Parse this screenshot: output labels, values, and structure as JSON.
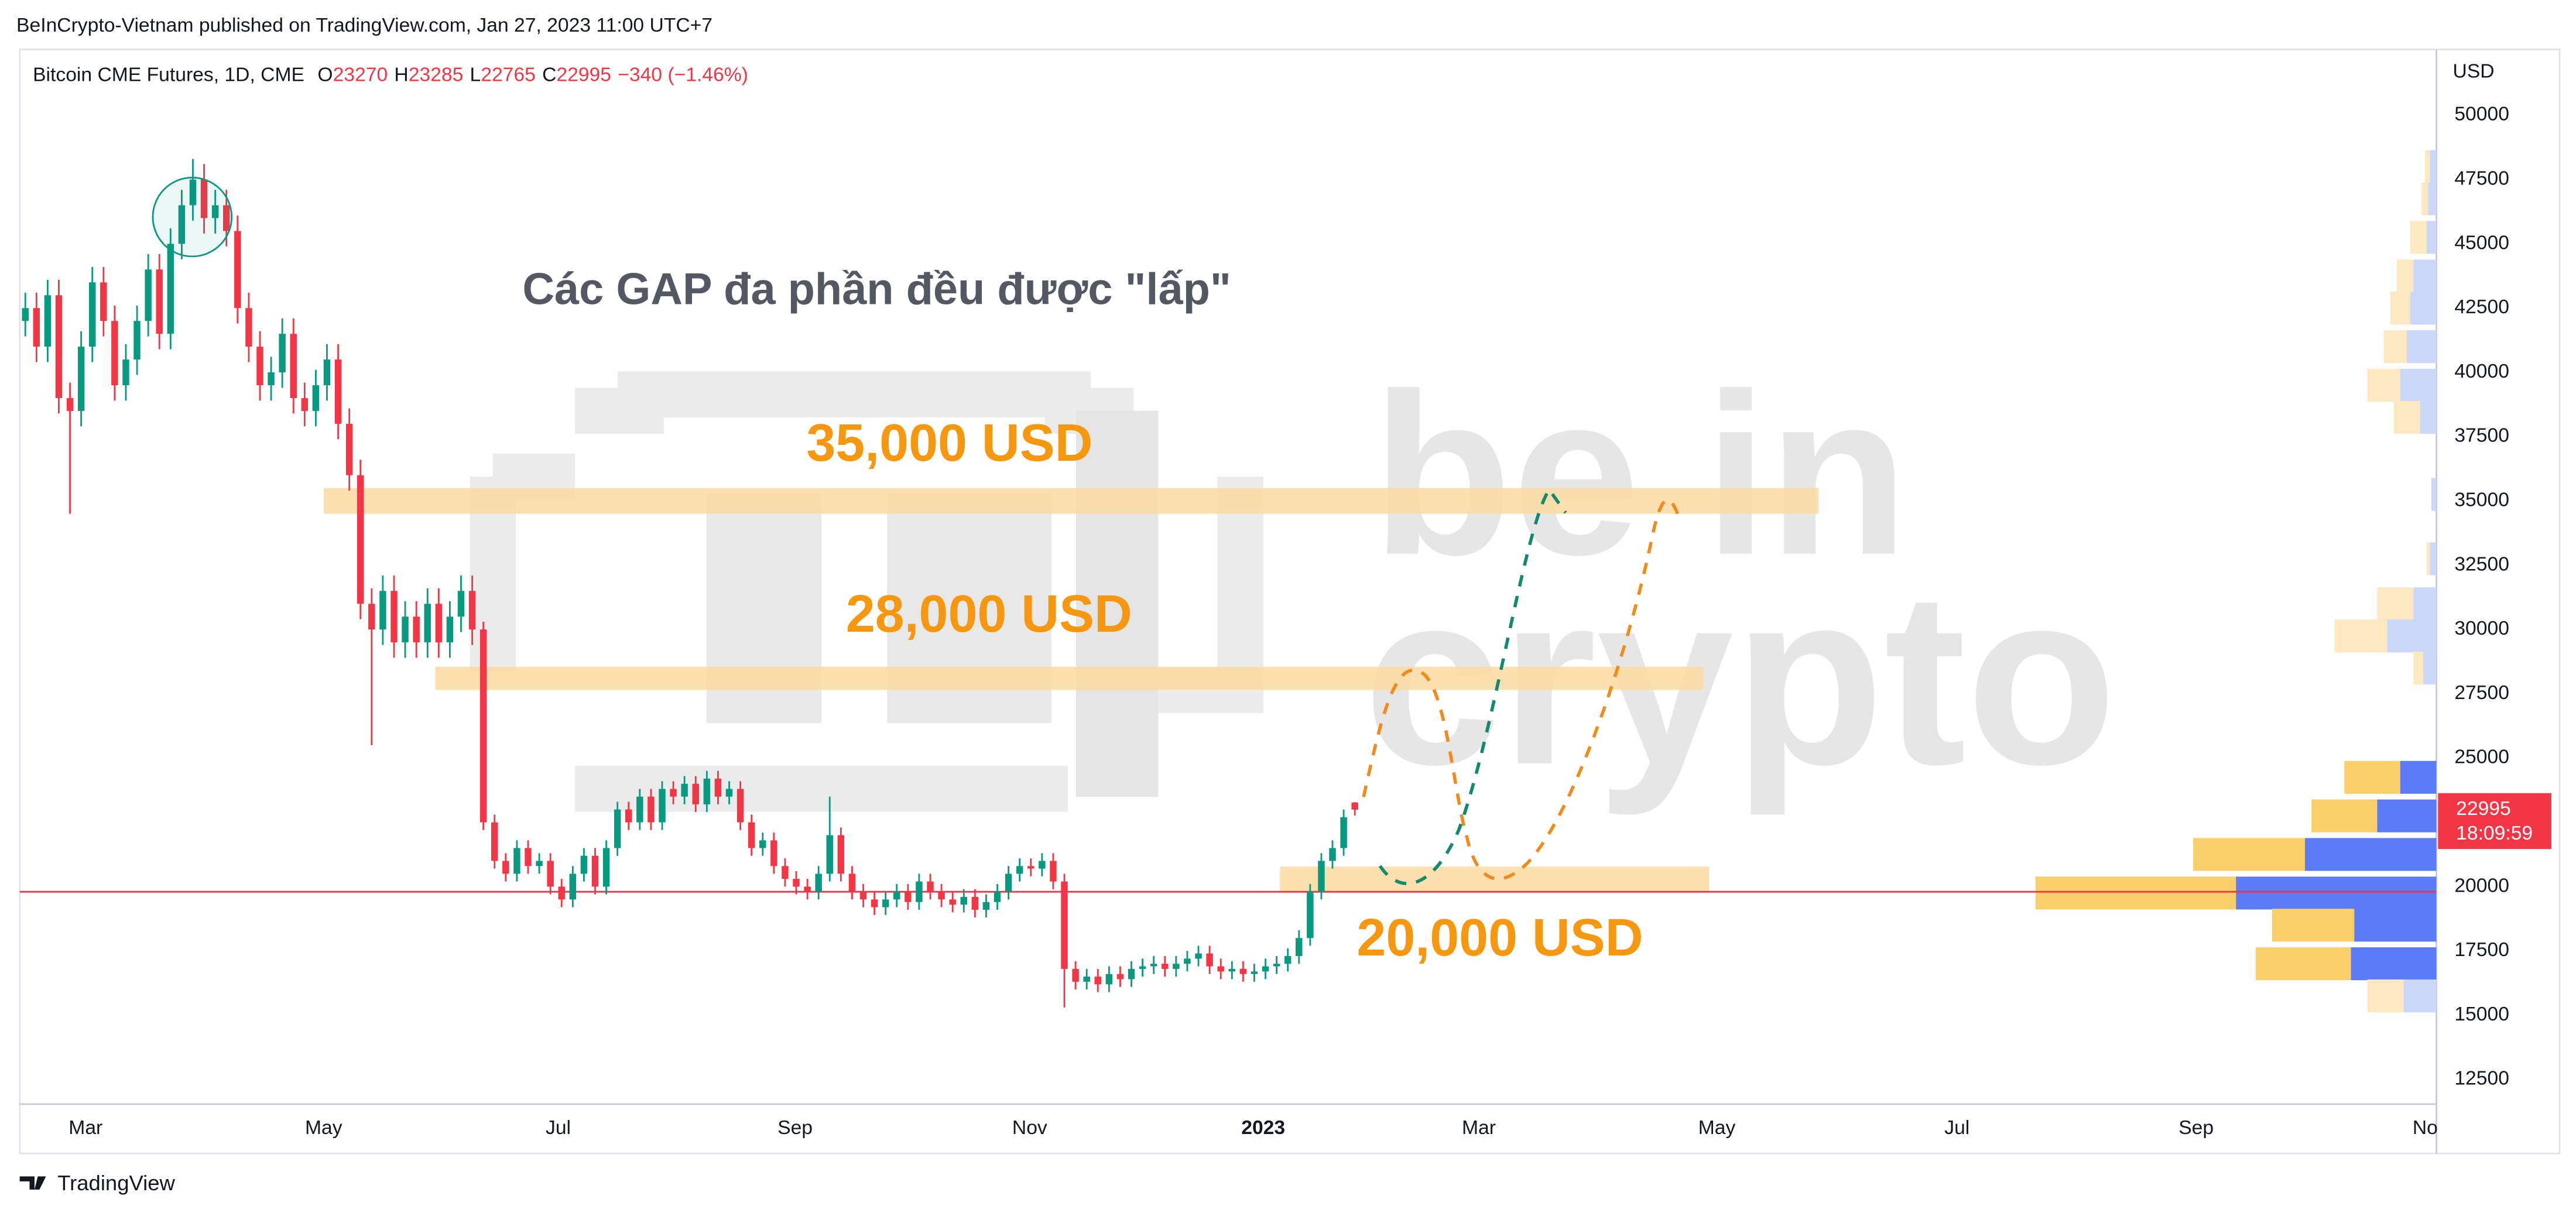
{
  "header": "BeInCrypto-Vietnam published on TradingView.com, Jan 27, 2023 11:00 UTC+7",
  "footer": "TradingView",
  "chart_data": {
    "type": "candlestick",
    "title": "Các GAP đa phần đều được \"lấp\"",
    "symbol": "Bitcoin CME Futures, 1D, CME",
    "ohlc_prefixes": [
      "O",
      "H",
      "L",
      "C"
    ],
    "change": "−340 (−1.46%)",
    "countdown": "18:09:59",
    "y_unit": "USD",
    "open": [
      42000,
      42500,
      41000,
      43000,
      39000,
      38500,
      41000,
      43500,
      42000,
      39500,
      40500,
      42000,
      44000,
      41500,
      45000,
      46500,
      47500,
      46000,
      46500,
      45500,
      42500,
      41000,
      39500,
      40000,
      41500,
      39000,
      38500,
      39500,
      40500,
      38000,
      36000,
      31000,
      30000,
      31500,
      29500,
      30500,
      29500,
      31000,
      29500,
      30500,
      31500,
      30000,
      22500,
      21000,
      20500,
      21500,
      20800,
      21000,
      20000,
      19500,
      20500,
      21200,
      20000,
      21500,
      23000,
      22500,
      23500,
      22500,
      23800,
      23500,
      24000,
      23200,
      24200,
      23500,
      23800,
      22500,
      21500,
      21800,
      20800,
      20300,
      20000,
      19800,
      20500,
      22000,
      20500,
      19800,
      19500,
      19200,
      19500,
      19800,
      19400,
      20200,
      19800,
      19500,
      19300,
      19600,
      19100,
      19400,
      19800,
      20500,
      20800,
      20700,
      21000,
      20200,
      16800,
      16300,
      16500,
      16200,
      16600,
      16400,
      16800,
      16900,
      17000,
      16800,
      17000,
      17200,
      17400,
      16900,
      16700,
      16800,
      16600,
      16700,
      16900,
      17000,
      17300,
      18000,
      19800,
      21000,
      21500,
      23270
    ],
    "high": [
      43100,
      43100,
      43600,
      43600,
      39600,
      41600,
      44100,
      44100,
      42600,
      41100,
      42600,
      44600,
      44600,
      45600,
      47100,
      48300,
      48100,
      47100,
      47100,
      46100,
      43100,
      41600,
      40600,
      42100,
      42100,
      39600,
      40100,
      41100,
      41100,
      38600,
      36600,
      31600,
      32100,
      32100,
      31100,
      31100,
      31600,
      31600,
      31100,
      32100,
      32100,
      30300,
      22800,
      21300,
      21800,
      21800,
      21300,
      21300,
      20300,
      20800,
      21500,
      21500,
      21800,
      23300,
      23300,
      23800,
      23800,
      24100,
      24100,
      24300,
      24300,
      24500,
      24500,
      24100,
      24100,
      22800,
      22100,
      22100,
      21100,
      20600,
      20300,
      20800,
      23500,
      22300,
      20800,
      20100,
      19800,
      19800,
      20100,
      20100,
      20500,
      20500,
      20100,
      19800,
      19900,
      19900,
      19700,
      20100,
      20800,
      21100,
      21100,
      21300,
      21300,
      20500,
      17100,
      16800,
      16800,
      16900,
      16900,
      17100,
      17200,
      17300,
      17300,
      17300,
      17500,
      17700,
      17700,
      17200,
      17100,
      17100,
      17000,
      17200,
      17300,
      17600,
      18300,
      20100,
      21300,
      21800,
      23000,
      23285
    ],
    "low": [
      41400,
      40400,
      40400,
      38400,
      34500,
      37900,
      40400,
      41400,
      38900,
      38900,
      39900,
      41400,
      40900,
      40900,
      44400,
      45900,
      45400,
      45400,
      44900,
      41900,
      40400,
      38900,
      38900,
      39400,
      38400,
      37900,
      37900,
      38900,
      37400,
      35400,
      30400,
      25500,
      29400,
      28900,
      28900,
      28900,
      28900,
      28900,
      28900,
      29900,
      29400,
      22200,
      20700,
      20200,
      20200,
      20500,
      20500,
      19700,
      19200,
      19200,
      20200,
      19700,
      19700,
      21200,
      22200,
      22200,
      22200,
      22200,
      23200,
      23200,
      22900,
      22900,
      23200,
      23200,
      22200,
      21200,
      21200,
      20500,
      20000,
      19700,
      19500,
      19500,
      20200,
      20200,
      19500,
      19200,
      18900,
      18900,
      19200,
      19100,
      19100,
      19500,
      19200,
      19000,
      19000,
      18800,
      18800,
      19100,
      19500,
      20200,
      20400,
      20400,
      19900,
      15300,
      16000,
      16000,
      15900,
      15900,
      16100,
      16100,
      16500,
      16600,
      16500,
      16500,
      16700,
      16900,
      16600,
      16400,
      16400,
      16300,
      16300,
      16400,
      16600,
      16700,
      17000,
      17700,
      19500,
      20700,
      21200,
      22765
    ],
    "close": [
      42500,
      41000,
      43000,
      39000,
      38500,
      41000,
      43500,
      42000,
      39500,
      40500,
      42000,
      44000,
      41500,
      45000,
      46500,
      47500,
      46000,
      46500,
      45500,
      42500,
      41000,
      39500,
      40000,
      41500,
      39000,
      38500,
      39500,
      40500,
      38000,
      36000,
      31000,
      30000,
      31500,
      29500,
      30500,
      29500,
      31000,
      29500,
      30500,
      31500,
      30000,
      22500,
      21000,
      20500,
      21500,
      20800,
      21000,
      20000,
      19500,
      20500,
      21200,
      20000,
      21500,
      23000,
      22500,
      23500,
      22500,
      23800,
      23500,
      24000,
      23200,
      24200,
      23500,
      23800,
      22500,
      21500,
      21800,
      20800,
      20300,
      20000,
      19800,
      20500,
      22000,
      20500,
      19800,
      19500,
      19200,
      19500,
      19800,
      19400,
      20200,
      19800,
      19500,
      19300,
      19600,
      19100,
      19400,
      19800,
      20500,
      20800,
      20700,
      21000,
      20200,
      16800,
      16300,
      16500,
      16200,
      16600,
      16400,
      16800,
      16900,
      17000,
      16800,
      17000,
      17200,
      17400,
      16900,
      16700,
      16800,
      16600,
      16700,
      16900,
      17000,
      17300,
      18000,
      19800,
      21000,
      21500,
      22700,
      22995
    ],
    "up_color": "#089981",
    "down_color": "#f23645",
    "xlim": [
      -0.5,
      215.8
    ],
    "xticks": [
      {
        "value": 5.4,
        "label": "Mar"
      },
      {
        "value": 26.7,
        "label": "May"
      },
      {
        "value": 47.7,
        "label": "Jul"
      },
      {
        "value": 68.9,
        "label": "Sep"
      },
      {
        "value": 89.9,
        "label": "Nov"
      },
      {
        "value": 110.8,
        "label": "2023"
      },
      {
        "value": 130.1,
        "label": "Mar"
      },
      {
        "value": 151.4,
        "label": "May"
      },
      {
        "value": 172.9,
        "label": "Jul"
      },
      {
        "value": 194.3,
        "label": "Sep"
      },
      {
        "value": 214.8,
        "label": "No"
      }
    ],
    "ylim": [
      11540,
      52560
    ],
    "yticks": [
      12500,
      15000,
      17500,
      20000,
      22500,
      25000,
      27500,
      30000,
      32500,
      35000,
      37500,
      40000,
      42500,
      45000,
      47500,
      50000
    ],
    "grid": false,
    "hline": {
      "value": 19800,
      "color": "#f23645"
    },
    "zones": [
      {
        "label": "35,000 USD",
        "ylim": [
          34500,
          35500
        ],
        "xlim": [
          26.7,
          160.5
        ]
      },
      {
        "label": "28,000 USD",
        "ylim": [
          27650,
          28550
        ],
        "xlim": [
          36.7,
          150.2
        ]
      },
      {
        "label": "20,000 USD",
        "ylim": [
          19760,
          20780
        ],
        "xlim": [
          112.3,
          150.7
        ]
      }
    ],
    "zone_color": "#fcd9a0",
    "label_color": "#f5980f",
    "volume_profile": {
      "rows": [
        48000,
        46750,
        45250,
        43750,
        42500,
        41000,
        39500,
        38250,
        35250,
        32750,
        31000,
        29750,
        28500,
        24250,
        22750,
        21250,
        19750,
        18500,
        17000,
        15750
      ],
      "up": [
        4,
        5,
        6,
        14,
        16,
        18,
        22,
        10,
        3,
        4,
        14,
        30,
        8,
        22,
        36,
        80,
        122,
        50,
        52,
        20
      ],
      "down": [
        3,
        4,
        10,
        10,
        12,
        14,
        20,
        16,
        0,
        2,
        22,
        32,
        6,
        34,
        40,
        68,
        122,
        50,
        58,
        22
      ],
      "up_color": "#5b7cf6",
      "down_color": "#f9cf6b",
      "faded_up_color": "#cbd6fb",
      "faded_down_color": "#fde8c2",
      "value_area": [
        16400,
        25000
      ]
    },
    "watermark": [
      "be in",
      "crypto"
    ]
  }
}
